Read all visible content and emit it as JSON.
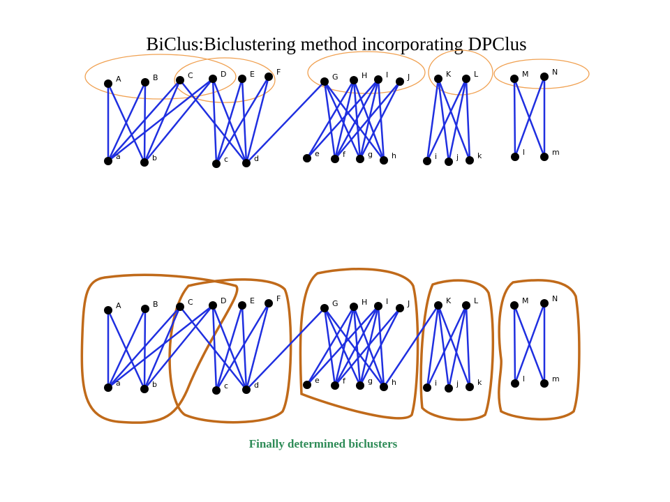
{
  "title": "BiClus:Biclustering method incorporating DPClus",
  "caption": "Finally determined biclusters",
  "top_graph": {
    "node_labels": [
      "A",
      "B",
      "C",
      "D",
      "E",
      "F",
      "G",
      "H",
      "I",
      "J",
      "K",
      "L",
      "M",
      "N",
      "a",
      "b",
      "c",
      "d",
      "e",
      "f",
      "g",
      "h",
      "i",
      "j",
      "k",
      "l",
      "m"
    ]
  },
  "bottom_graph": {
    "node_labels": [
      "A",
      "B",
      "C",
      "D",
      "E",
      "F",
      "G",
      "H",
      "I",
      "J",
      "K",
      "L",
      "M",
      "N",
      "a",
      "b",
      "c",
      "d",
      "e",
      "f",
      "g",
      "h",
      "i",
      "j",
      "k",
      "l",
      "m"
    ]
  }
}
